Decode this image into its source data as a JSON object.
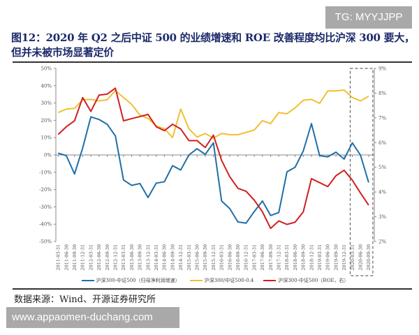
{
  "watermark_top": "TG: MYYJJPP",
  "watermark_bottom": "www.appaomen-duchang.com",
  "title_line1": "图12：2020 年 Q2 之后中证 500 的业绩增速和 ROE 改善程度均比沪深 300 要大，",
  "title_line2": "但并未被市场显著定价",
  "source": "数据来源：Wind、开源证券研究所",
  "chart_data": {
    "type": "line",
    "categories": [
      "2011-03-31",
      "2011-06-30",
      "2011-09-30",
      "2011-12-31",
      "2012-03-31",
      "2012-06-30",
      "2012-09-30",
      "2012-12-31",
      "2013-03-31",
      "2013-06-30",
      "2013-09-30",
      "2013-12-31",
      "2014-03-31",
      "2014-06-30",
      "2014-09-30",
      "2014-12-31",
      "2015-03-31",
      "2015-06-30",
      "2015-09-30",
      "2015-12-31",
      "2016-03-31",
      "2016-06-30",
      "2016-09-30",
      "2016-12-31",
      "2017-03-31",
      "2017-06-30",
      "2017-09-30",
      "2017-12-31",
      "2018-03-31",
      "2018-06-30",
      "2018-09-30",
      "2018-12-31",
      "2019-03-31",
      "2019-06-30",
      "2019-09-30",
      "2019-12-31",
      "2020-03-31",
      "2020-06-30",
      "2020-09-30"
    ],
    "left_axis": {
      "ylim": [
        -50,
        50
      ],
      "ticks": [
        "50%",
        "40%",
        "30%",
        "20%",
        "10%",
        "0%",
        "-10%",
        "-20%",
        "-30%",
        "-40%",
        "-50%"
      ]
    },
    "right_axis": {
      "ylim": [
        2,
        9
      ],
      "ticks": [
        "9%",
        "8%",
        "7%",
        "6%",
        "5%",
        "4%",
        "3%",
        "2%"
      ]
    },
    "series": [
      {
        "name": "沪深300-中证500（归母净利润增速）",
        "axis": "left",
        "color": "#1f6fa8",
        "values": [
          1,
          -0.4,
          -11,
          4,
          22,
          20.5,
          17.7,
          11,
          -14.5,
          -17.6,
          -16.5,
          -24.6,
          -16.3,
          -15.5,
          -6.2,
          -8.7,
          0,
          3.6,
          0.3,
          7,
          -26.6,
          -31,
          -38.7,
          -39.4,
          -32.7,
          -26.6,
          -35,
          -33.3,
          -9.8,
          -7.1,
          2.3,
          18.1,
          -0.4,
          -1.1,
          1.6,
          -2.4,
          7,
          -0.1,
          -15.9
        ]
      },
      {
        "name": "沪深300/中证500-0.4",
        "axis": "left",
        "color": "#f0c030",
        "values": [
          24.5,
          26.5,
          26.9,
          31.9,
          32.1,
          31.2,
          31.9,
          37.2,
          33.2,
          29.2,
          23.1,
          21.1,
          16.8,
          15.1,
          10.1,
          26.5,
          15.1,
          10.3,
          12.4,
          9.7,
          12.4,
          11.7,
          11.7,
          13,
          14.4,
          19.8,
          18.1,
          24.5,
          23.8,
          27.2,
          31.6,
          32.1,
          29.8,
          37,
          37,
          37.5,
          33.2,
          31.2,
          33.9
        ]
      },
      {
        "name": "沪深300-中证500（ROE，右）",
        "axis": "right",
        "color": "#d0201f",
        "values": [
          6.33,
          6.64,
          6.88,
          7.82,
          7.26,
          7.92,
          7.96,
          8.2,
          6.88,
          6.97,
          7.05,
          7.14,
          6.64,
          6.48,
          6.74,
          6.55,
          6.08,
          6.08,
          5.8,
          6.3,
          5.28,
          4.62,
          4.15,
          4.03,
          3.67,
          3.2,
          2.53,
          2.83,
          2.69,
          2.78,
          3.2,
          4.54,
          4.38,
          4.22,
          4.66,
          4.88,
          4.48,
          3.96,
          3.47
        ]
      }
    ],
    "highlight": {
      "from": "2020-03-31",
      "to": "2020-09-30",
      "style": "dashed box"
    },
    "legend_placement": "bottom",
    "grid": false
  }
}
